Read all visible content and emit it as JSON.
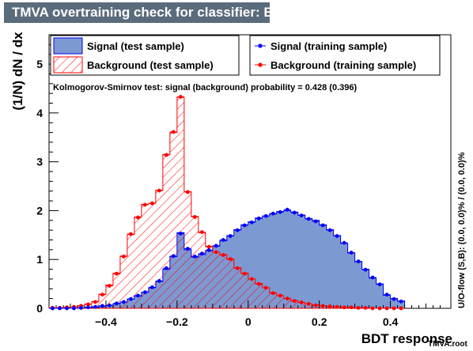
{
  "title": "TMVA overtraining check for classifier: BDT",
  "file_label": "TMVA.root",
  "chart_data": {
    "type": "histogram",
    "xlabel": "BDT response",
    "ylabel": "(1/N) dN / dx",
    "xlim": [
      -0.56,
      0.57
    ],
    "ylim": [
      0,
      5.6
    ],
    "x_ticks": [
      "−0.4",
      "−0.2",
      "0",
      "0.2",
      "0.4"
    ],
    "x_tick_values": [
      -0.4,
      -0.2,
      0,
      0.2,
      0.4
    ],
    "y_ticks": [
      "0",
      "1",
      "2",
      "3",
      "4",
      "5"
    ],
    "y_tick_values": [
      0,
      1,
      2,
      3,
      4,
      5
    ],
    "ks_text": "Kolmogorov-Smirnov test: signal (background) probability = 0.428 (0.396)",
    "overflow_text": "U/O-flow (S,B): (0.0, 0.0)% / (0.0, 0.0)%",
    "bin_edges_start": -0.56,
    "bin_width": 0.02,
    "legend": {
      "signal_test": "Signal (test sample)",
      "background_test": "Background (test sample)",
      "signal_train": "Signal (training sample)",
      "background_train": "Background (training sample)"
    },
    "colors": {
      "signal_fill": "#7d99d1",
      "signal_line": "#0000ee",
      "background_line": "#ff0000",
      "signal_marker": "#0000ff",
      "background_marker": "#ff0000"
    },
    "series": [
      {
        "name": "Signal (test sample)",
        "style": "filled",
        "values": [
          0.0,
          0.0,
          0.0,
          0.0,
          0.01,
          0.02,
          0.02,
          0.04,
          0.06,
          0.09,
          0.13,
          0.19,
          0.25,
          0.33,
          0.42,
          0.55,
          0.8,
          1.06,
          1.55,
          1.2,
          1.05,
          1.1,
          1.18,
          1.27,
          1.38,
          1.49,
          1.61,
          1.71,
          1.77,
          1.85,
          1.89,
          1.93,
          1.98,
          2.0,
          1.97,
          1.91,
          1.84,
          1.8,
          1.71,
          1.61,
          1.49,
          1.33,
          1.13,
          0.95,
          0.8,
          0.62,
          0.5,
          0.27,
          0.2,
          0.15
        ]
      },
      {
        "name": "Background (test sample)",
        "style": "hatched",
        "values": [
          0.01,
          0.01,
          0.02,
          0.03,
          0.05,
          0.09,
          0.14,
          0.29,
          0.48,
          0.72,
          1.07,
          1.51,
          1.87,
          2.13,
          2.15,
          2.42,
          3.15,
          3.6,
          4.32,
          2.39,
          1.88,
          1.55,
          1.27,
          1.15,
          1.1,
          1.0,
          0.83,
          0.72,
          0.6,
          0.51,
          0.42,
          0.32,
          0.26,
          0.2,
          0.16,
          0.12,
          0.09,
          0.07,
          0.05,
          0.04,
          0.03,
          0.02,
          0.01,
          0.01,
          0.01,
          0.0,
          0.0,
          0.0,
          0.0,
          0.0
        ]
      },
      {
        "name": "Signal (training sample)",
        "style": "markers",
        "values": [
          0.0,
          0.0,
          0.0,
          0.0,
          0.01,
          0.02,
          0.03,
          0.05,
          0.06,
          0.1,
          0.13,
          0.19,
          0.26,
          0.33,
          0.43,
          0.56,
          0.82,
          1.07,
          1.53,
          1.22,
          1.06,
          1.12,
          1.19,
          1.28,
          1.4,
          1.48,
          1.6,
          1.7,
          1.76,
          1.84,
          1.89,
          1.94,
          1.97,
          2.02,
          1.96,
          1.9,
          1.83,
          1.78,
          1.7,
          1.6,
          1.48,
          1.34,
          1.14,
          0.96,
          0.79,
          0.63,
          0.49,
          0.28,
          0.19,
          0.14
        ]
      },
      {
        "name": "Background (training sample)",
        "style": "markers",
        "values": [
          0.01,
          0.01,
          0.02,
          0.03,
          0.05,
          0.08,
          0.13,
          0.28,
          0.46,
          0.71,
          1.06,
          1.52,
          1.86,
          2.12,
          2.15,
          2.41,
          3.14,
          3.61,
          4.33,
          2.38,
          1.87,
          1.56,
          1.26,
          1.15,
          1.09,
          1.01,
          0.82,
          0.71,
          0.6,
          0.5,
          0.42,
          0.31,
          0.26,
          0.2,
          0.15,
          0.12,
          0.09,
          0.06,
          0.05,
          0.04,
          0.03,
          0.02,
          0.02,
          0.01,
          0.01,
          0.0,
          0.0,
          0.0,
          0.0,
          0.0
        ]
      }
    ]
  }
}
